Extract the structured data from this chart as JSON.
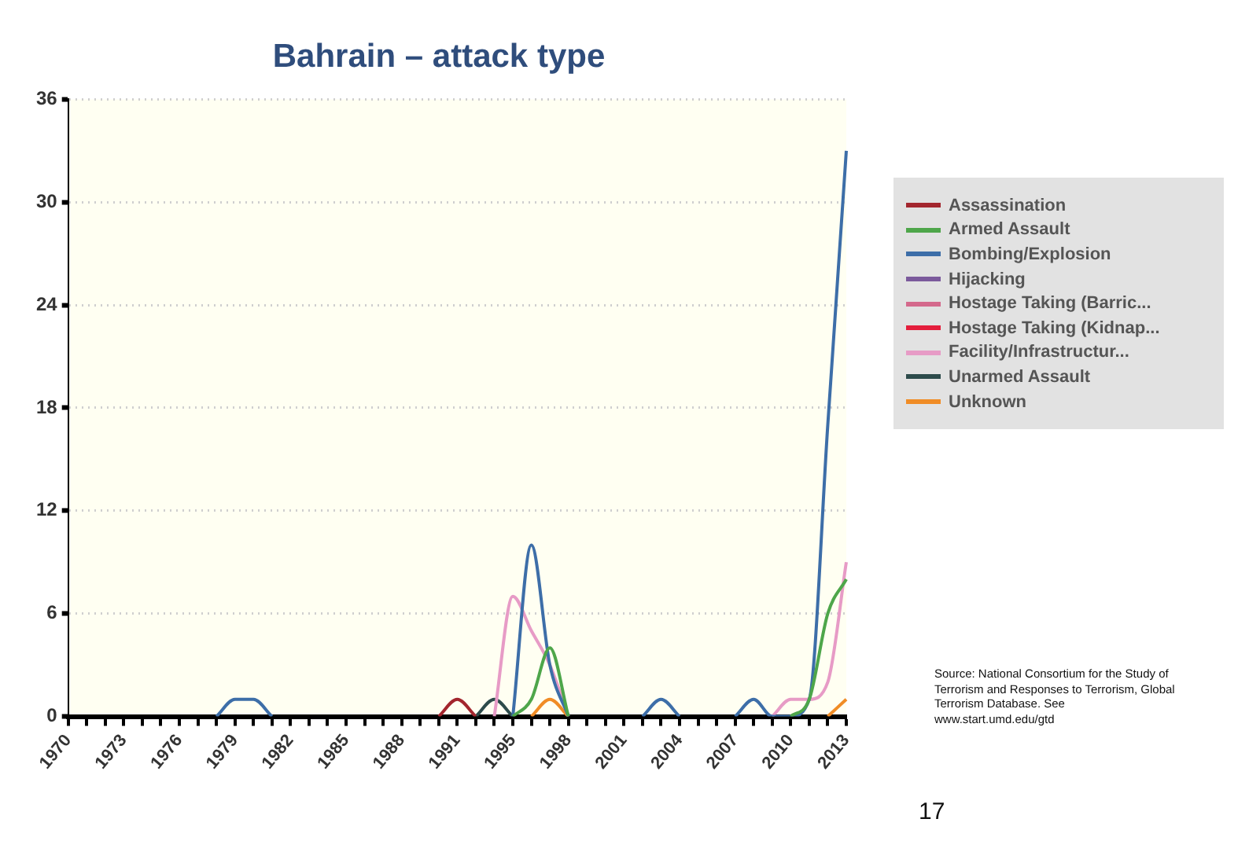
{
  "chart_data": {
    "type": "line",
    "title": "Bahrain – attack type",
    "categories": [
      "1970",
      null,
      null,
      "1973",
      null,
      null,
      "1976",
      null,
      null,
      "1979",
      null,
      null,
      "1982",
      null,
      null,
      "1985",
      null,
      null,
      "1988",
      null,
      null,
      "1991",
      null,
      null,
      "1995",
      null,
      null,
      "1998",
      null,
      null,
      "2001",
      null,
      null,
      "2004",
      null,
      null,
      "2007",
      null,
      null,
      "2010",
      null,
      null,
      "2013"
    ],
    "series": [
      {
        "name": "Assassination",
        "color": "#a3262e",
        "values": [
          null,
          null,
          null,
          null,
          null,
          null,
          null,
          null,
          null,
          null,
          null,
          null,
          null,
          null,
          null,
          null,
          null,
          null,
          null,
          null,
          0,
          1,
          0,
          null,
          null,
          null,
          null,
          null,
          null,
          null,
          null,
          null,
          null,
          null,
          null,
          null,
          null,
          null,
          null,
          null,
          null,
          null,
          null
        ]
      },
      {
        "name": "Armed Assault",
        "color": "#4ea64a",
        "values": [
          null,
          null,
          null,
          null,
          null,
          null,
          null,
          null,
          null,
          null,
          null,
          null,
          null,
          null,
          null,
          null,
          null,
          null,
          null,
          null,
          null,
          null,
          null,
          null,
          0,
          1,
          4,
          0,
          null,
          null,
          null,
          null,
          null,
          null,
          null,
          null,
          null,
          null,
          null,
          0,
          1,
          6,
          8
        ]
      },
      {
        "name": "Bombing/Explosion",
        "color": "#3d6ea8",
        "values": [
          null,
          null,
          null,
          null,
          null,
          null,
          null,
          null,
          0,
          1,
          1,
          0,
          null,
          null,
          null,
          null,
          null,
          null,
          null,
          null,
          null,
          null,
          null,
          null,
          0,
          10,
          3,
          0,
          null,
          null,
          null,
          0,
          1,
          0,
          null,
          null,
          0,
          1,
          0,
          0,
          1,
          17,
          33
        ]
      },
      {
        "name": "Hijacking",
        "color": "#7b5a9c",
        "values": [
          null,
          null,
          null,
          null,
          null,
          null,
          null,
          null,
          null,
          null,
          null,
          null,
          null,
          null,
          null,
          null,
          null,
          null,
          null,
          null,
          null,
          null,
          null,
          null,
          null,
          null,
          null,
          null,
          null,
          null,
          null,
          null,
          null,
          null,
          null,
          null,
          null,
          null,
          null,
          null,
          null,
          null,
          null
        ]
      },
      {
        "name": "Hostage Taking (Barric...",
        "color": "#d4698c",
        "values": [
          null,
          null,
          null,
          null,
          null,
          null,
          null,
          null,
          null,
          null,
          null,
          null,
          null,
          null,
          null,
          null,
          null,
          null,
          null,
          null,
          null,
          null,
          null,
          null,
          null,
          null,
          null,
          null,
          null,
          null,
          null,
          null,
          null,
          null,
          null,
          null,
          null,
          null,
          null,
          null,
          null,
          null,
          null
        ]
      },
      {
        "name": "Hostage Taking (Kidnap...",
        "color": "#e41e3c",
        "values": [
          null,
          null,
          null,
          null,
          null,
          null,
          null,
          null,
          null,
          null,
          null,
          null,
          null,
          null,
          null,
          null,
          null,
          null,
          null,
          null,
          null,
          null,
          null,
          null,
          null,
          null,
          null,
          null,
          null,
          null,
          null,
          null,
          null,
          null,
          null,
          null,
          null,
          null,
          null,
          null,
          null,
          null,
          null
        ]
      },
      {
        "name": "Facility/Infrastructur...",
        "color": "#e79bc6",
        "values": [
          null,
          null,
          null,
          null,
          null,
          null,
          null,
          null,
          null,
          null,
          null,
          null,
          null,
          null,
          null,
          null,
          null,
          null,
          null,
          null,
          null,
          null,
          null,
          0,
          7,
          5,
          3,
          0,
          null,
          null,
          null,
          null,
          null,
          null,
          null,
          null,
          null,
          null,
          0,
          1,
          1,
          2,
          9
        ]
      },
      {
        "name": "Unarmed Assault",
        "color": "#2d4b4b",
        "values": [
          null,
          null,
          null,
          null,
          null,
          null,
          null,
          null,
          null,
          null,
          null,
          null,
          null,
          null,
          null,
          null,
          null,
          null,
          null,
          null,
          null,
          null,
          0,
          1,
          0,
          null,
          null,
          null,
          null,
          null,
          null,
          null,
          null,
          null,
          null,
          null,
          null,
          null,
          null,
          null,
          null,
          null,
          null
        ]
      },
      {
        "name": "Unknown",
        "color": "#f08c26",
        "values": [
          null,
          null,
          null,
          null,
          null,
          null,
          null,
          null,
          null,
          null,
          null,
          null,
          null,
          null,
          null,
          null,
          null,
          null,
          null,
          null,
          null,
          null,
          null,
          null,
          null,
          0,
          1,
          0,
          null,
          null,
          null,
          null,
          null,
          null,
          null,
          null,
          null,
          null,
          null,
          null,
          null,
          0,
          1
        ]
      }
    ],
    "ylim": [
      0,
      36
    ],
    "yticks": [
      0,
      6,
      12,
      18,
      24,
      30,
      36
    ],
    "grid": "y",
    "legend": "right",
    "marker": "none",
    "line_style": "solid",
    "annotations": [
      "Source: National Consortium for the Study of Terrorism and Responses to Terrorism, Global Terrorism Database. See www.start.umd.edu/gtd",
      "17"
    ]
  }
}
